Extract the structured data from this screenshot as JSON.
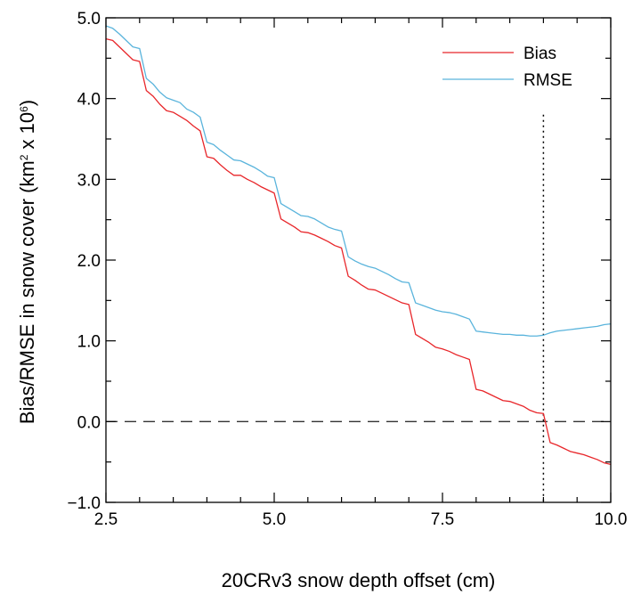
{
  "chart_data": {
    "type": "line",
    "xlabel": "20CRv3 snow depth offset (cm)",
    "ylabel": "Bias/RMSE in snow cover (km² x 10⁶)",
    "ylabel_parts": {
      "prefix": "Bias/RMSE in snow cover (km",
      "sup1": "2",
      "mid": " x 10",
      "sup2": "6",
      "suffix": ")"
    },
    "xlim": [
      2.5,
      10.0
    ],
    "ylim": [
      -1.0,
      5.0
    ],
    "xticks": [
      2.5,
      5.0,
      7.5,
      10.0
    ],
    "xtick_labels": [
      "2.5",
      "5.0",
      "7.5",
      "10.0"
    ],
    "yticks": [
      -1.0,
      0.0,
      1.0,
      2.0,
      3.0,
      4.0,
      5.0
    ],
    "ytick_labels": [
      "−1.0",
      "0.0",
      "1.0",
      "2.0",
      "3.0",
      "4.0",
      "5.0"
    ],
    "legend_position": "top-right",
    "reference_lines": {
      "horizontal_dashed_y": 0.0,
      "vertical_dotted_x": 9.0,
      "vertical_dotted_ymax": 3.8
    },
    "series": [
      {
        "name": "Bias",
        "color": "#e8262a",
        "x": [
          2.5,
          2.6,
          2.7,
          2.8,
          2.9,
          3.0,
          3.1,
          3.2,
          3.3,
          3.4,
          3.5,
          3.6,
          3.7,
          3.8,
          3.9,
          4.0,
          4.1,
          4.2,
          4.3,
          4.4,
          4.5,
          4.6,
          4.7,
          4.8,
          4.9,
          5.0,
          5.1,
          5.2,
          5.3,
          5.4,
          5.5,
          5.6,
          5.7,
          5.8,
          5.9,
          6.0,
          6.1,
          6.2,
          6.3,
          6.4,
          6.5,
          6.6,
          6.7,
          6.8,
          6.9,
          7.0,
          7.1,
          7.2,
          7.3,
          7.4,
          7.5,
          7.6,
          7.7,
          7.8,
          7.9,
          8.0,
          8.1,
          8.2,
          8.3,
          8.4,
          8.5,
          8.6,
          8.7,
          8.8,
          8.9,
          9.0,
          9.1,
          9.2,
          9.3,
          9.4,
          9.5,
          9.6,
          9.7,
          9.8,
          9.9,
          10.0
        ],
        "values": [
          4.74,
          4.72,
          4.64,
          4.56,
          4.48,
          4.46,
          4.1,
          4.03,
          3.93,
          3.85,
          3.83,
          3.78,
          3.73,
          3.66,
          3.6,
          3.28,
          3.26,
          3.18,
          3.11,
          3.05,
          3.05,
          3.0,
          2.96,
          2.91,
          2.87,
          2.83,
          2.51,
          2.46,
          2.41,
          2.35,
          2.34,
          2.31,
          2.27,
          2.23,
          2.18,
          2.15,
          1.8,
          1.75,
          1.69,
          1.64,
          1.63,
          1.59,
          1.55,
          1.51,
          1.47,
          1.45,
          1.08,
          1.03,
          0.98,
          0.92,
          0.9,
          0.87,
          0.83,
          0.8,
          0.77,
          0.4,
          0.38,
          0.34,
          0.3,
          0.26,
          0.25,
          0.22,
          0.19,
          0.14,
          0.11,
          0.1,
          -0.26,
          -0.29,
          -0.33,
          -0.37,
          -0.39,
          -0.41,
          -0.44,
          -0.47,
          -0.51,
          -0.53
        ]
      },
      {
        "name": "RMSE",
        "color": "#5ab4dc",
        "x": [
          2.5,
          2.6,
          2.7,
          2.8,
          2.9,
          3.0,
          3.1,
          3.2,
          3.3,
          3.4,
          3.5,
          3.6,
          3.7,
          3.8,
          3.9,
          4.0,
          4.1,
          4.2,
          4.3,
          4.4,
          4.5,
          4.6,
          4.7,
          4.8,
          4.9,
          5.0,
          5.1,
          5.2,
          5.3,
          5.4,
          5.5,
          5.6,
          5.7,
          5.8,
          5.9,
          6.0,
          6.1,
          6.2,
          6.3,
          6.4,
          6.5,
          6.6,
          6.7,
          6.8,
          6.9,
          7.0,
          7.1,
          7.2,
          7.3,
          7.4,
          7.5,
          7.6,
          7.7,
          7.8,
          7.9,
          8.0,
          8.1,
          8.2,
          8.3,
          8.4,
          8.5,
          8.6,
          8.7,
          8.8,
          8.9,
          9.0,
          9.1,
          9.2,
          9.3,
          9.4,
          9.5,
          9.6,
          9.7,
          9.8,
          9.9,
          10.0
        ],
        "values": [
          4.9,
          4.87,
          4.8,
          4.72,
          4.64,
          4.62,
          4.25,
          4.18,
          4.08,
          4.01,
          3.98,
          3.95,
          3.87,
          3.83,
          3.77,
          3.46,
          3.43,
          3.36,
          3.3,
          3.24,
          3.23,
          3.19,
          3.15,
          3.1,
          3.04,
          3.02,
          2.7,
          2.65,
          2.6,
          2.55,
          2.54,
          2.51,
          2.46,
          2.41,
          2.38,
          2.36,
          2.04,
          1.99,
          1.95,
          1.92,
          1.9,
          1.86,
          1.82,
          1.77,
          1.73,
          1.72,
          1.47,
          1.44,
          1.41,
          1.38,
          1.36,
          1.35,
          1.33,
          1.3,
          1.27,
          1.12,
          1.11,
          1.1,
          1.09,
          1.08,
          1.08,
          1.07,
          1.07,
          1.06,
          1.06,
          1.07,
          1.1,
          1.12,
          1.13,
          1.14,
          1.15,
          1.16,
          1.17,
          1.18,
          1.2,
          1.21
        ]
      }
    ]
  }
}
